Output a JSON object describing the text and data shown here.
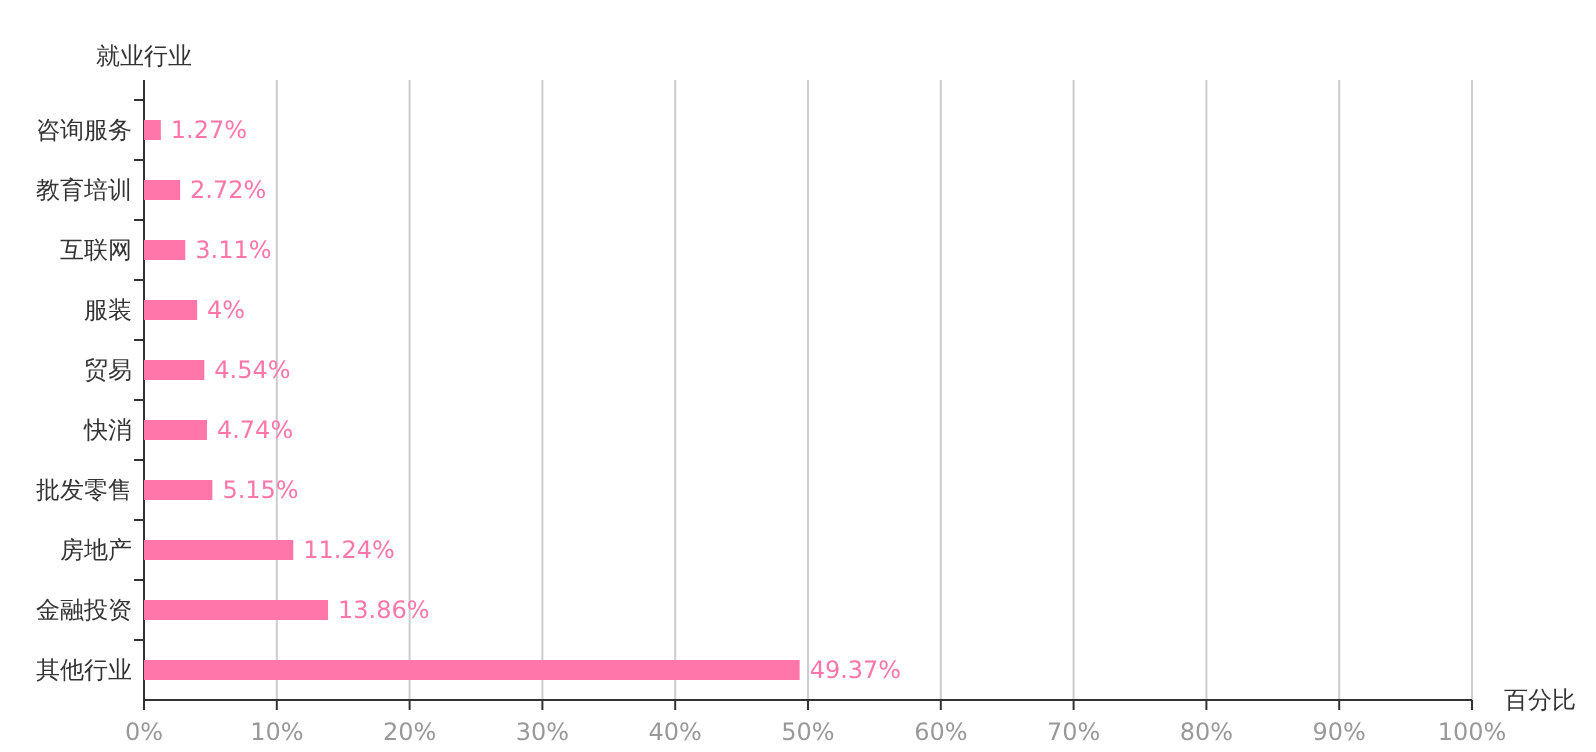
{
  "chart_data": {
    "type": "bar",
    "orientation": "horizontal",
    "ylabel": "就业行业",
    "xlabel": "百分比",
    "categories": [
      "咨询服务",
      "教育培训",
      "互联网",
      "服装",
      "贸易",
      "快消",
      "批发零售",
      "房地产",
      "金融投资",
      "其他行业"
    ],
    "values": [
      1.27,
      2.72,
      3.11,
      4,
      4.54,
      4.74,
      5.15,
      11.24,
      13.86,
      49.37
    ],
    "value_labels": [
      "1.27%",
      "2.72%",
      "3.11%",
      "4%",
      "4.54%",
      "4.74%",
      "5.15%",
      "11.24%",
      "13.86%",
      "49.37%"
    ],
    "color": "#ff77aa",
    "xlim": [
      0,
      100
    ],
    "xticks": [
      {
        "value": 0,
        "label": "0%"
      },
      {
        "value": 10,
        "label": "10%"
      },
      {
        "value": 20,
        "label": "20%"
      },
      {
        "value": 30,
        "label": "30%"
      },
      {
        "value": 40,
        "label": "40%"
      },
      {
        "value": 50,
        "label": "50%"
      },
      {
        "value": 60,
        "label": "60%"
      },
      {
        "value": 70,
        "label": "70%"
      },
      {
        "value": 80,
        "label": "80%"
      },
      {
        "value": 90,
        "label": "90%"
      },
      {
        "value": 100,
        "label": "100%"
      }
    ],
    "grid": "x"
  }
}
